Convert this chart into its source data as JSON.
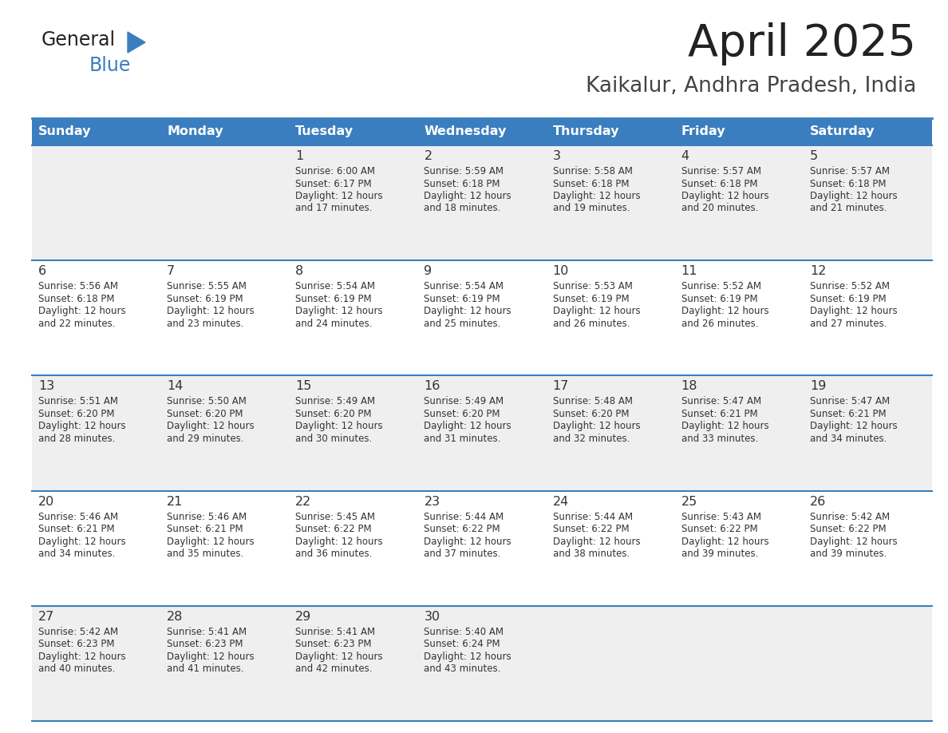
{
  "title": "April 2025",
  "subtitle": "Kaikalur, Andhra Pradesh, India",
  "header_color": "#3a7ebf",
  "header_text_color": "#ffffff",
  "day_names": [
    "Sunday",
    "Monday",
    "Tuesday",
    "Wednesday",
    "Thursday",
    "Friday",
    "Saturday"
  ],
  "alt_row_color": "#efefef",
  "row_color": "#ffffff",
  "border_color": "#3a7ebf",
  "text_color": "#333333",
  "logo_general_color": "#222222",
  "logo_blue_color": "#3a7ebf",
  "logo_triangle_color": "#3a7ebf",
  "days": [
    {
      "day": 1,
      "col": 2,
      "row": 0,
      "sunrise": "6:00 AM",
      "sunset": "6:17 PM",
      "daylight_hours": 12,
      "daylight_minutes": 17
    },
    {
      "day": 2,
      "col": 3,
      "row": 0,
      "sunrise": "5:59 AM",
      "sunset": "6:18 PM",
      "daylight_hours": 12,
      "daylight_minutes": 18
    },
    {
      "day": 3,
      "col": 4,
      "row": 0,
      "sunrise": "5:58 AM",
      "sunset": "6:18 PM",
      "daylight_hours": 12,
      "daylight_minutes": 19
    },
    {
      "day": 4,
      "col": 5,
      "row": 0,
      "sunrise": "5:57 AM",
      "sunset": "6:18 PM",
      "daylight_hours": 12,
      "daylight_minutes": 20
    },
    {
      "day": 5,
      "col": 6,
      "row": 0,
      "sunrise": "5:57 AM",
      "sunset": "6:18 PM",
      "daylight_hours": 12,
      "daylight_minutes": 21
    },
    {
      "day": 6,
      "col": 0,
      "row": 1,
      "sunrise": "5:56 AM",
      "sunset": "6:18 PM",
      "daylight_hours": 12,
      "daylight_minutes": 22
    },
    {
      "day": 7,
      "col": 1,
      "row": 1,
      "sunrise": "5:55 AM",
      "sunset": "6:19 PM",
      "daylight_hours": 12,
      "daylight_minutes": 23
    },
    {
      "day": 8,
      "col": 2,
      "row": 1,
      "sunrise": "5:54 AM",
      "sunset": "6:19 PM",
      "daylight_hours": 12,
      "daylight_minutes": 24
    },
    {
      "day": 9,
      "col": 3,
      "row": 1,
      "sunrise": "5:54 AM",
      "sunset": "6:19 PM",
      "daylight_hours": 12,
      "daylight_minutes": 25
    },
    {
      "day": 10,
      "col": 4,
      "row": 1,
      "sunrise": "5:53 AM",
      "sunset": "6:19 PM",
      "daylight_hours": 12,
      "daylight_minutes": 26
    },
    {
      "day": 11,
      "col": 5,
      "row": 1,
      "sunrise": "5:52 AM",
      "sunset": "6:19 PM",
      "daylight_hours": 12,
      "daylight_minutes": 26
    },
    {
      "day": 12,
      "col": 6,
      "row": 1,
      "sunrise": "5:52 AM",
      "sunset": "6:19 PM",
      "daylight_hours": 12,
      "daylight_minutes": 27
    },
    {
      "day": 13,
      "col": 0,
      "row": 2,
      "sunrise": "5:51 AM",
      "sunset": "6:20 PM",
      "daylight_hours": 12,
      "daylight_minutes": 28
    },
    {
      "day": 14,
      "col": 1,
      "row": 2,
      "sunrise": "5:50 AM",
      "sunset": "6:20 PM",
      "daylight_hours": 12,
      "daylight_minutes": 29
    },
    {
      "day": 15,
      "col": 2,
      "row": 2,
      "sunrise": "5:49 AM",
      "sunset": "6:20 PM",
      "daylight_hours": 12,
      "daylight_minutes": 30
    },
    {
      "day": 16,
      "col": 3,
      "row": 2,
      "sunrise": "5:49 AM",
      "sunset": "6:20 PM",
      "daylight_hours": 12,
      "daylight_minutes": 31
    },
    {
      "day": 17,
      "col": 4,
      "row": 2,
      "sunrise": "5:48 AM",
      "sunset": "6:20 PM",
      "daylight_hours": 12,
      "daylight_minutes": 32
    },
    {
      "day": 18,
      "col": 5,
      "row": 2,
      "sunrise": "5:47 AM",
      "sunset": "6:21 PM",
      "daylight_hours": 12,
      "daylight_minutes": 33
    },
    {
      "day": 19,
      "col": 6,
      "row": 2,
      "sunrise": "5:47 AM",
      "sunset": "6:21 PM",
      "daylight_hours": 12,
      "daylight_minutes": 34
    },
    {
      "day": 20,
      "col": 0,
      "row": 3,
      "sunrise": "5:46 AM",
      "sunset": "6:21 PM",
      "daylight_hours": 12,
      "daylight_minutes": 34
    },
    {
      "day": 21,
      "col": 1,
      "row": 3,
      "sunrise": "5:46 AM",
      "sunset": "6:21 PM",
      "daylight_hours": 12,
      "daylight_minutes": 35
    },
    {
      "day": 22,
      "col": 2,
      "row": 3,
      "sunrise": "5:45 AM",
      "sunset": "6:22 PM",
      "daylight_hours": 12,
      "daylight_minutes": 36
    },
    {
      "day": 23,
      "col": 3,
      "row": 3,
      "sunrise": "5:44 AM",
      "sunset": "6:22 PM",
      "daylight_hours": 12,
      "daylight_minutes": 37
    },
    {
      "day": 24,
      "col": 4,
      "row": 3,
      "sunrise": "5:44 AM",
      "sunset": "6:22 PM",
      "daylight_hours": 12,
      "daylight_minutes": 38
    },
    {
      "day": 25,
      "col": 5,
      "row": 3,
      "sunrise": "5:43 AM",
      "sunset": "6:22 PM",
      "daylight_hours": 12,
      "daylight_minutes": 39
    },
    {
      "day": 26,
      "col": 6,
      "row": 3,
      "sunrise": "5:42 AM",
      "sunset": "6:22 PM",
      "daylight_hours": 12,
      "daylight_minutes": 39
    },
    {
      "day": 27,
      "col": 0,
      "row": 4,
      "sunrise": "5:42 AM",
      "sunset": "6:23 PM",
      "daylight_hours": 12,
      "daylight_minutes": 40
    },
    {
      "day": 28,
      "col": 1,
      "row": 4,
      "sunrise": "5:41 AM",
      "sunset": "6:23 PM",
      "daylight_hours": 12,
      "daylight_minutes": 41
    },
    {
      "day": 29,
      "col": 2,
      "row": 4,
      "sunrise": "5:41 AM",
      "sunset": "6:23 PM",
      "daylight_hours": 12,
      "daylight_minutes": 42
    },
    {
      "day": 30,
      "col": 3,
      "row": 4,
      "sunrise": "5:40 AM",
      "sunset": "6:24 PM",
      "daylight_hours": 12,
      "daylight_minutes": 43
    }
  ]
}
